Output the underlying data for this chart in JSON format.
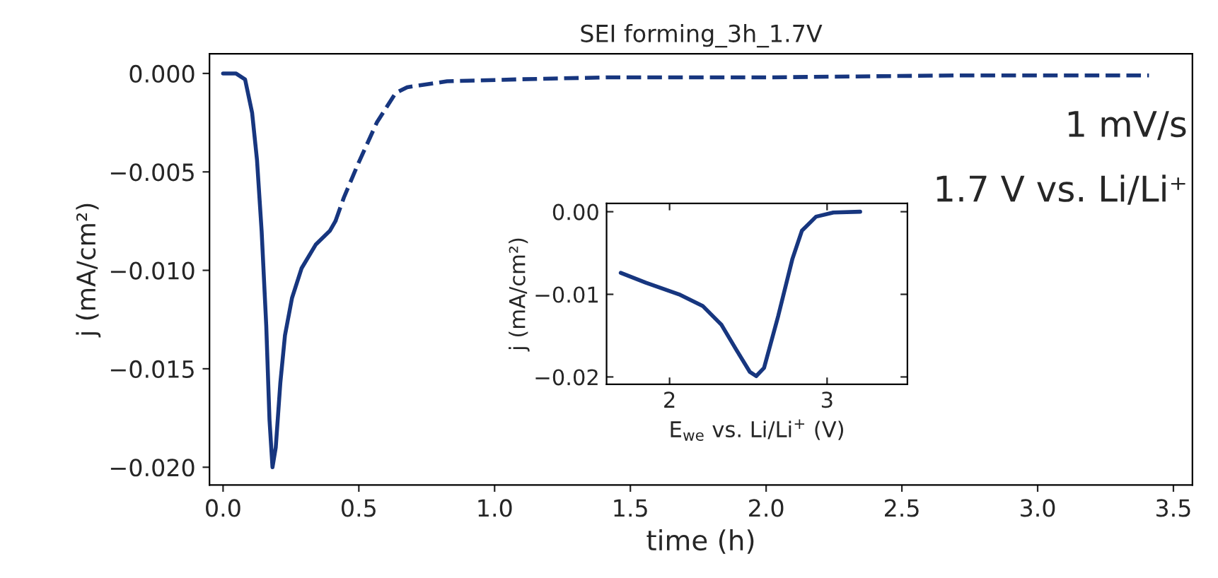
{
  "chart_data": [
    {
      "type": "line",
      "title": "SEI forming_3h_1.7V",
      "xlabel": "time (h)",
      "ylabel": "j (mA/cm²)",
      "annotations": [
        "1 mV/s",
        "1.7 V vs. Li/Li⁺"
      ],
      "series": [
        {
          "color": "#17367f",
          "line_style": "solid",
          "x": [
            0,
            0.047,
            0.081,
            0.107,
            0.125,
            0.142,
            0.159,
            0.171,
            0.182,
            0.194,
            0.211,
            0.228,
            0.254,
            0.289,
            0.341,
            0.393,
            0.414
          ],
          "values": [
            0,
            0,
            -0.0003,
            -0.002,
            -0.0044,
            -0.008,
            -0.0128,
            -0.0176,
            -0.02,
            -0.019,
            -0.0157,
            -0.0133,
            -0.0114,
            -0.0099,
            -0.0087,
            -0.008,
            -0.0075
          ]
        },
        {
          "color": "#17367f",
          "line_style": "dashed",
          "x": [
            0.414,
            0.445,
            0.497,
            0.566,
            0.635,
            0.678,
            0.825,
            1.085,
            1.41,
            2.0,
            2.7,
            3.41
          ],
          "values": [
            -0.0075,
            -0.0063,
            -0.0046,
            -0.0025,
            -0.001,
            -0.0007,
            -0.0004,
            -0.0003,
            -0.0002,
            -0.0002,
            -0.0001,
            -0.0001
          ]
        }
      ],
      "xlim": [
        -0.05,
        3.57
      ],
      "ylim": [
        -0.0209,
        0.001
      ],
      "xticks": [
        {
          "value": 0,
          "label": "0.0"
        },
        0.5,
        {
          "value": 1,
          "label": "1.0"
        },
        1.5,
        {
          "value": 2,
          "label": "2.0"
        },
        2.5,
        {
          "value": 3,
          "label": "3.0"
        },
        3.5
      ],
      "yticks": [
        {
          "value": 0,
          "label": "0.000"
        },
        {
          "value": -0.005,
          "label": "−0.005"
        },
        {
          "value": -0.01,
          "label": "−0.010"
        },
        {
          "value": -0.015,
          "label": "−0.015"
        },
        {
          "value": -0.02,
          "label": "−0.020"
        }
      ]
    },
    {
      "type": "line",
      "xlabel": "E$_{we}$ vs. Li/Li$^{+}$ (V)",
      "ylabel": "j (mA/cm²)",
      "series": [
        {
          "color": "#17367f",
          "line_style": "solid",
          "x": [
            1.69,
            1.85,
            2.06,
            2.21,
            2.33,
            2.42,
            2.51,
            2.55,
            2.6,
            2.69,
            2.78,
            2.84,
            2.93,
            3.04,
            3.21
          ],
          "values": [
            -0.0074,
            -0.0086,
            -0.01,
            -0.0114,
            -0.0137,
            -0.0166,
            -0.0194,
            -0.0199,
            -0.0189,
            -0.0126,
            -0.0057,
            -0.0023,
            -0.0006,
            -0.0001,
            0
          ]
        }
      ],
      "xlim": [
        1.6,
        3.51
      ],
      "ylim": [
        -0.0209,
        0.001
      ],
      "xticks": [
        2,
        3
      ],
      "yticks": [
        {
          "value": 0,
          "label": "0.00"
        },
        {
          "value": -0.01,
          "label": "−0.01"
        },
        {
          "value": -0.02,
          "label": "−0.02"
        }
      ]
    }
  ]
}
